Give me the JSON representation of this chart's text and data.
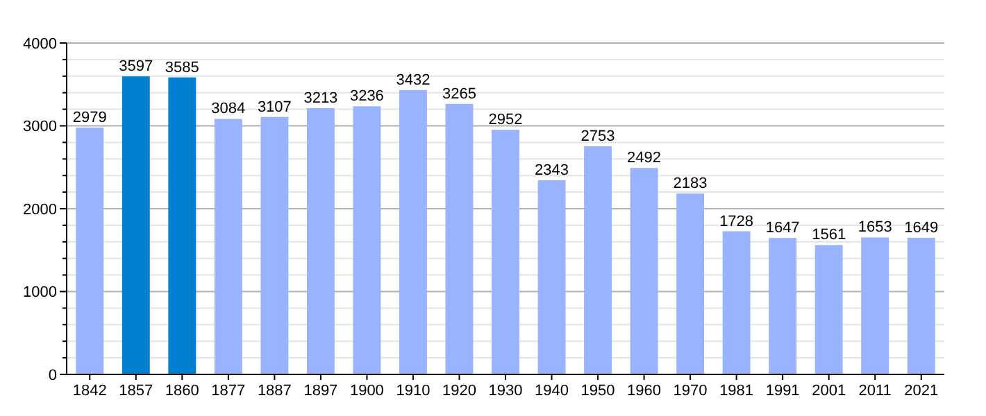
{
  "chart_data": {
    "type": "bar",
    "categories": [
      "1842",
      "1857",
      "1860",
      "1877",
      "1887",
      "1897",
      "1900",
      "1910",
      "1920",
      "1930",
      "1940",
      "1950",
      "1960",
      "1970",
      "1981",
      "1991",
      "2001",
      "2011",
      "2021"
    ],
    "values": [
      2979,
      3597,
      3585,
      3084,
      3107,
      3213,
      3236,
      3432,
      3265,
      2952,
      2343,
      2753,
      2492,
      2183,
      1728,
      1647,
      1561,
      1653,
      1649
    ],
    "colors": [
      "#99b3ff",
      "#0080d0",
      "#0080d0",
      "#99b3ff",
      "#99b3ff",
      "#99b3ff",
      "#99b3ff",
      "#99b3ff",
      "#99b3ff",
      "#99b3ff",
      "#99b3ff",
      "#99b3ff",
      "#99b3ff",
      "#99b3ff",
      "#99b3ff",
      "#99b3ff",
      "#99b3ff",
      "#99b3ff",
      "#99b3ff"
    ],
    "ylim": [
      0,
      4000
    ],
    "yticks": [
      0,
      {
        "value": 200,
        "label": null
      },
      {
        "value": 400,
        "label": null
      },
      {
        "value": 600,
        "label": null
      },
      {
        "value": 800,
        "label": null
      },
      1000,
      {
        "value": 1200,
        "label": null
      },
      {
        "value": 1400,
        "label": null
      },
      {
        "value": 1600,
        "label": null
      },
      {
        "value": 1800,
        "label": null
      },
      2000,
      {
        "value": 2200,
        "label": null
      },
      {
        "value": 2400,
        "label": null
      },
      {
        "value": 2600,
        "label": null
      },
      {
        "value": 2800,
        "label": null
      },
      3000,
      {
        "value": 3200,
        "label": null
      },
      {
        "value": 3400,
        "label": null
      },
      {
        "value": 3600,
        "label": null
      },
      {
        "value": 3800,
        "label": null
      },
      4000
    ],
    "grid": true,
    "data_labels": true
  }
}
